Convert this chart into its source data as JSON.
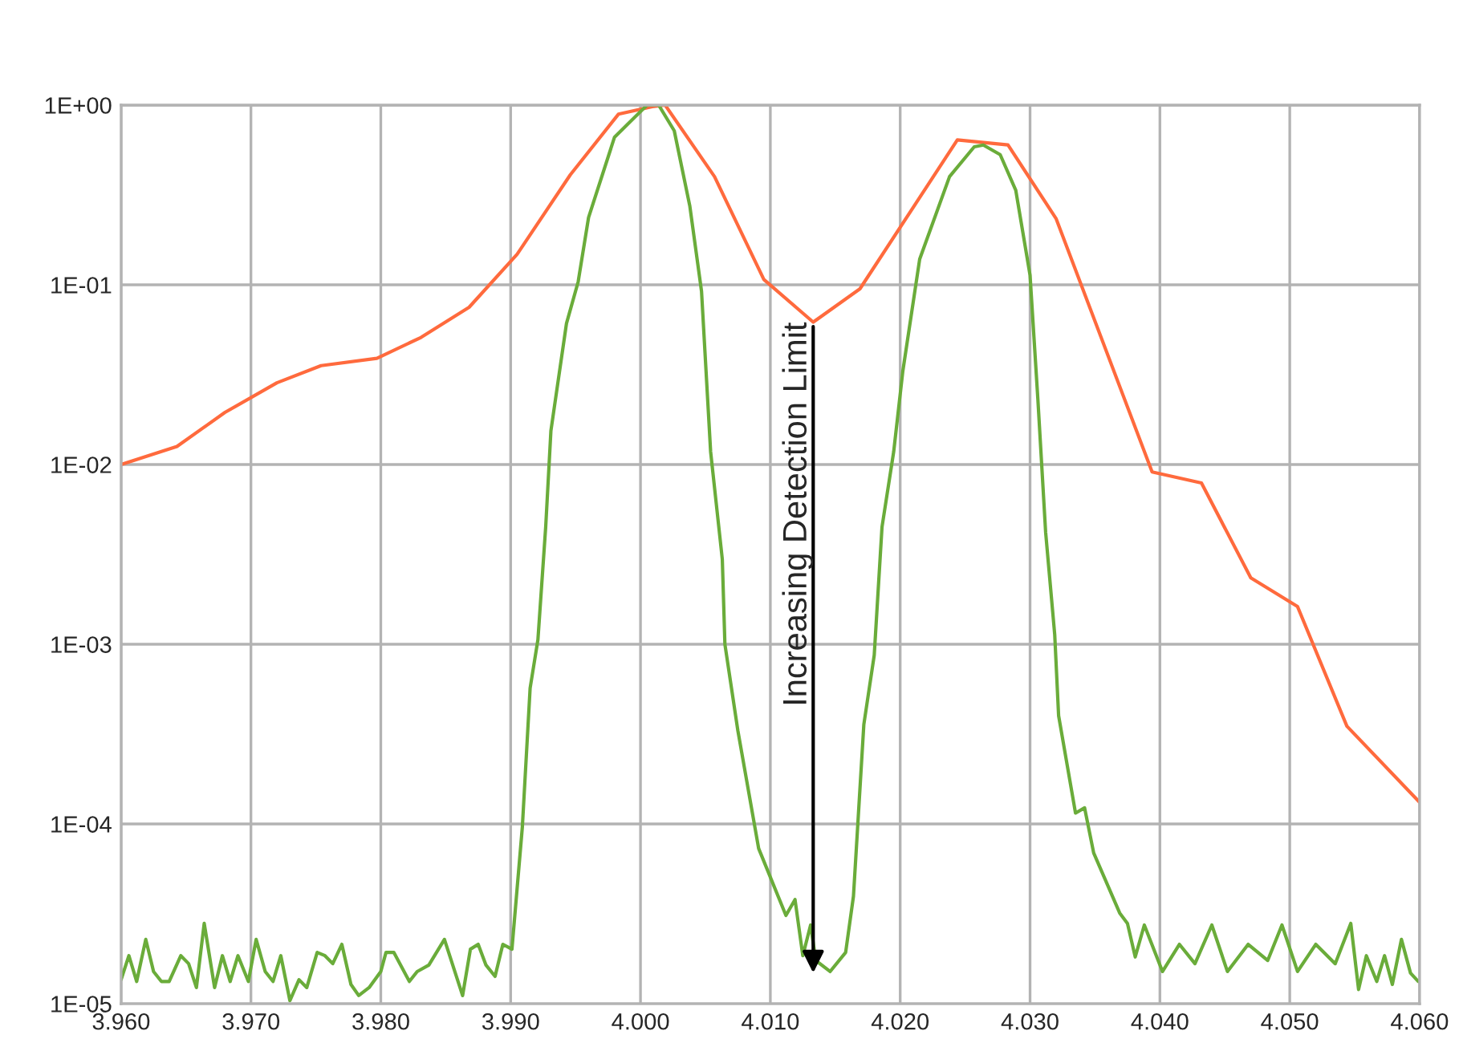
{
  "chart_data": {
    "type": "line",
    "log": "y",
    "grid": true,
    "legend": false,
    "marker": "none",
    "line_style": "solid",
    "xlim": [
      3.96,
      4.06
    ],
    "xticks": [
      {
        "value": 3.96,
        "label": "3.960"
      },
      {
        "value": 3.97,
        "label": "3.970"
      },
      {
        "value": 3.98,
        "label": "3.980"
      },
      {
        "value": 3.99,
        "label": "3.990"
      },
      {
        "value": 4.0,
        "label": "4.000"
      },
      {
        "value": 4.01,
        "label": "4.010"
      },
      {
        "value": 4.02,
        "label": "4.020"
      },
      {
        "value": 4.03,
        "label": "4.030"
      },
      {
        "value": 4.04,
        "label": "4.040"
      },
      {
        "value": 4.05,
        "label": "4.050"
      },
      {
        "value": 4.06,
        "label": "4.060"
      }
    ],
    "ylim": [
      1e-05,
      1
    ],
    "yticks": [
      {
        "value": 1e-05,
        "label": "1E-05"
      },
      {
        "value": 0.0001,
        "label": "1E-04"
      },
      {
        "value": 0.001,
        "label": "1E-03"
      },
      {
        "value": 0.01,
        "label": "1E-02"
      },
      {
        "value": 0.1,
        "label": "1E-01"
      },
      {
        "value": 1,
        "label": "1E+00"
      }
    ],
    "series": [
      {
        "color": "#ff6a3d",
        "x": [
          3.96,
          3.9643,
          3.968,
          3.972,
          3.9754,
          3.9797,
          3.9831,
          3.9868,
          3.9905,
          3.9946,
          3.9983,
          4.0009,
          4.0019,
          4.0057,
          4.0095,
          4.0133,
          4.0169,
          4.0244,
          4.0283,
          4.032,
          4.0394,
          4.0432,
          4.047,
          4.0506,
          4.0544,
          4.06
        ],
        "values": [
          0.01,
          0.0126,
          0.0195,
          0.0285,
          0.0355,
          0.039,
          0.051,
          0.075,
          0.148,
          0.41,
          0.89,
          0.98,
          1.0,
          0.4,
          0.107,
          0.062,
          0.095,
          0.64,
          0.6,
          0.234,
          0.0091,
          0.0079,
          0.00234,
          0.00162,
          0.00035,
          0.000132
        ]
      },
      {
        "color": "#6aac3a",
        "x": [
          3.96,
          3.9606,
          3.9612,
          3.9619,
          3.9625,
          3.9631,
          3.9637,
          3.9646,
          3.9652,
          3.9658,
          3.9664,
          3.9672,
          3.9678,
          3.9684,
          3.969,
          3.9698,
          3.9704,
          3.9711,
          3.9717,
          3.9723,
          3.973,
          3.9737,
          3.9743,
          3.9751,
          3.9757,
          3.9763,
          3.977,
          3.9777,
          3.9783,
          3.9791,
          3.98,
          3.9804,
          3.981,
          3.9822,
          3.9828,
          3.9837,
          3.9849,
          3.9863,
          3.9869,
          3.9875,
          3.9881,
          3.9888,
          3.9894,
          3.9901,
          3.9909,
          3.9915,
          3.9921,
          3.9927,
          3.9931,
          3.9943,
          3.9952,
          3.996,
          3.998,
          4.0005,
          4.0014,
          4.0026,
          4.0038,
          4.0047,
          4.0054,
          4.0063,
          4.0065,
          4.0075,
          4.0091,
          4.0112,
          4.0119,
          4.0125,
          4.0131,
          4.0135,
          4.0146,
          4.0158,
          4.0164,
          4.0172,
          4.018,
          4.0186,
          4.0195,
          4.0202,
          4.0215,
          4.0238,
          4.0257,
          4.0264,
          4.0277,
          4.0289,
          4.03,
          4.0306,
          4.0312,
          4.0319,
          4.0322,
          4.0335,
          4.0342,
          4.0349,
          4.0369,
          4.0375,
          4.0381,
          4.0388,
          4.0402,
          4.0415,
          4.0427,
          4.044,
          4.0452,
          4.0468,
          4.0483,
          4.0494,
          4.0506,
          4.052,
          4.0535,
          4.0547,
          4.0553,
          4.0559,
          4.0567,
          4.0573,
          4.0579,
          4.0586,
          4.0593,
          4.0599
        ],
        "values": [
          1.36e-05,
          1.85e-05,
          1.33e-05,
          2.28e-05,
          1.51e-05,
          1.33e-05,
          1.33e-05,
          1.85e-05,
          1.67e-05,
          1.23e-05,
          2.8e-05,
          1.23e-05,
          1.85e-05,
          1.33e-05,
          1.85e-05,
          1.33e-05,
          2.28e-05,
          1.51e-05,
          1.33e-05,
          1.85e-05,
          1.04e-05,
          1.36e-05,
          1.23e-05,
          1.93e-05,
          1.85e-05,
          1.67e-05,
          2.14e-05,
          1.28e-05,
          1.11e-05,
          1.23e-05,
          1.51e-05,
          1.93e-05,
          1.93e-05,
          1.33e-05,
          1.51e-05,
          1.64e-05,
          2.28e-05,
          1.11e-05,
          2.01e-05,
          2.14e-05,
          1.64e-05,
          1.42e-05,
          2.14e-05,
          2.01e-05,
          9.6e-05,
          0.00057,
          0.00106,
          0.0045,
          0.0154,
          0.061,
          0.104,
          0.237,
          0.663,
          1.0,
          1.0,
          0.72,
          0.274,
          0.092,
          0.0118,
          0.00297,
          0.001,
          0.00033,
          7.3e-05,
          3.1e-05,
          3.8e-05,
          1.85e-05,
          2.74e-05,
          1.74e-05,
          1.51e-05,
          1.93e-05,
          3.96e-05,
          0.000358,
          0.00087,
          0.0045,
          0.0118,
          0.033,
          0.139,
          0.4,
          0.586,
          0.6,
          0.53,
          0.336,
          0.113,
          0.0232,
          0.0042,
          0.00113,
          0.0004,
          0.000115,
          0.000123,
          6.9e-05,
          3.2e-05,
          2.8e-05,
          1.82e-05,
          2.74e-05,
          1.51e-05,
          2.14e-05,
          1.67e-05,
          2.74e-05,
          1.51e-05,
          2.14e-05,
          1.74e-05,
          2.74e-05,
          1.51e-05,
          2.14e-05,
          1.67e-05,
          2.8e-05,
          1.2e-05,
          1.85e-05,
          1.33e-05,
          1.85e-05,
          1.28e-05,
          2.28e-05,
          1.48e-05,
          1.33e-05
        ]
      }
    ],
    "annotations": [
      {
        "text": "Increasing Detection Limit",
        "x": 4.0133,
        "y": 0.062
      }
    ]
  }
}
